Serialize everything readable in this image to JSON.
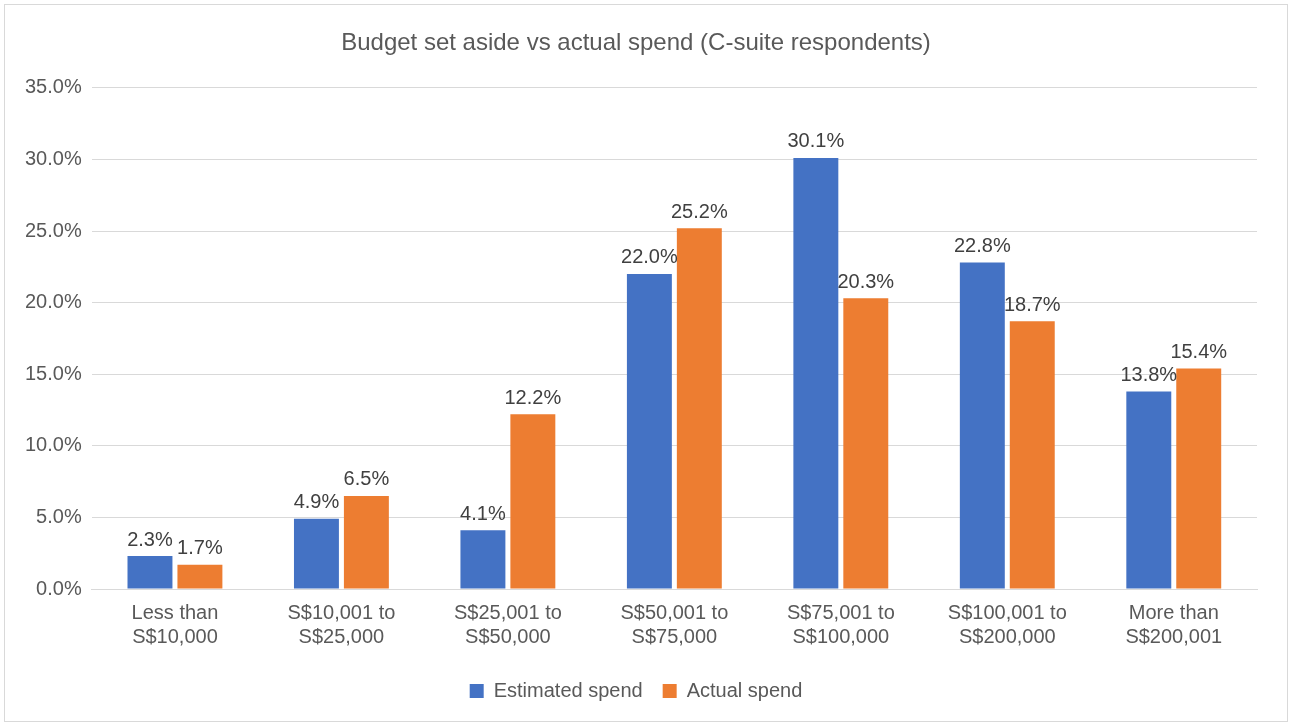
{
  "chart_data": {
    "type": "bar",
    "title": "Budget set aside vs actual spend (C-suite respondents)",
    "categories": [
      "Less than S$10,000",
      "S$10,001 to S$25,000",
      "S$25,001 to S$50,000",
      "S$50,001 to S$75,000",
      "S$75,001 to S$100,000",
      "S$100,001 to S$200,000",
      "More than S$200,001"
    ],
    "series": [
      {
        "name": "Estimated spend",
        "color": "#4472c4",
        "values": [
          2.3,
          4.9,
          4.1,
          22.0,
          30.1,
          22.8,
          13.8
        ],
        "value_labels": [
          "2.3%",
          "4.9%",
          "4.1%",
          "22.0%",
          "30.1%",
          "22.8%",
          "13.8%"
        ]
      },
      {
        "name": "Actual spend",
        "color": "#ed7d31",
        "values": [
          1.7,
          6.5,
          12.2,
          25.2,
          20.3,
          18.7,
          15.4
        ],
        "value_labels": [
          "1.7%",
          "6.5%",
          "12.2%",
          "25.2%",
          "20.3%",
          "18.7%",
          "15.4%"
        ]
      }
    ],
    "ylim": [
      0,
      35
    ],
    "yticks": [
      {
        "value": 0,
        "label": "0.0%"
      },
      {
        "value": 5,
        "label": "5.0%"
      },
      {
        "value": 10,
        "label": "10.0%"
      },
      {
        "value": 15,
        "label": "15.0%"
      },
      {
        "value": 20,
        "label": "20.0%"
      },
      {
        "value": 25,
        "label": "25.0%"
      },
      {
        "value": 30,
        "label": "30.0%"
      },
      {
        "value": 35,
        "label": "35.0%"
      }
    ],
    "grid": "y",
    "legend": "bottom"
  }
}
